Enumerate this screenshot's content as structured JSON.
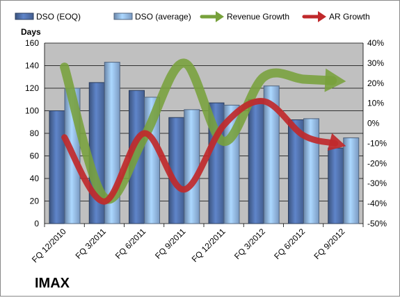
{
  "chart_data": {
    "type": "bar",
    "title": "IMAX",
    "ylabel": "Days",
    "categories": [
      "FQ 12/2010",
      "FQ 3/2011",
      "FQ 6/2011",
      "FQ 9/2011",
      "FQ 12/2011",
      "FQ 3/2012",
      "FQ 6/2012",
      "FQ 9/2012"
    ],
    "ylim": [
      0,
      160
    ],
    "y_ticks": [
      0,
      20,
      40,
      60,
      80,
      100,
      120,
      140,
      160
    ],
    "y2lim": [
      -50,
      40
    ],
    "y2_tick_labels": [
      "-50%",
      "-40%",
      "-30%",
      "-20%",
      "-10%",
      "0%",
      "10%",
      "20%",
      "30%",
      "40%"
    ],
    "y2_tick_values": [
      -50,
      -40,
      -30,
      -20,
      -10,
      0,
      10,
      20,
      30,
      40
    ],
    "grid": true,
    "legend_position": "top",
    "bar_series": [
      {
        "name": "DSO (EOQ)",
        "values": [
          100,
          125,
          118,
          94,
          107,
          110,
          92,
          67
        ],
        "color": "#4f6fa8"
      },
      {
        "name": "DSO (average)",
        "values": [
          120,
          143,
          112,
          101,
          105,
          122,
          93,
          76
        ],
        "color": "#8fb4e3"
      }
    ],
    "line_series": [
      {
        "name": "Revenue Growth",
        "axis": "secondary",
        "values": [
          28,
          -37,
          -7,
          30,
          -9,
          23,
          22,
          21
        ],
        "color": "#77a13b"
      },
      {
        "name": "AR Growth",
        "axis": "secondary",
        "values": [
          -7,
          -39,
          -5,
          -33,
          -1,
          11,
          -6,
          -11
        ],
        "color": "#c0292b"
      }
    ],
    "colors": {
      "plot_bg": "#c0c0c0",
      "grid": "#000000"
    }
  }
}
